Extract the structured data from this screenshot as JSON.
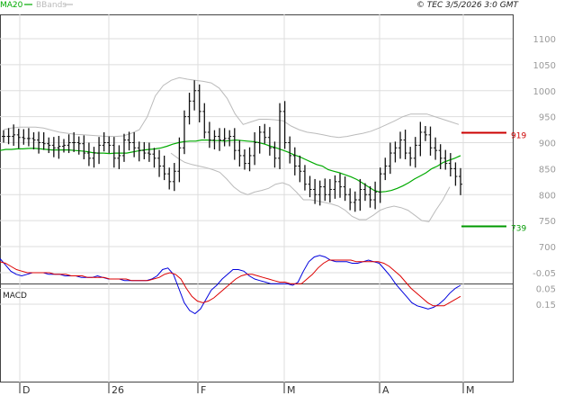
{
  "header": {
    "ma_label": "MA20",
    "bb_label": "BBands",
    "copyright": "© TEC 3/5/2026 3:0 GMT"
  },
  "colors": {
    "ma": "#00aa00",
    "bb": "#bbbbbb",
    "bars": "#111111",
    "resistance": "#cc0000",
    "support": "#009900",
    "macd": "#0000dd",
    "signal": "#dd0000",
    "grid": "#dddddd"
  },
  "chart_data": [
    {
      "type": "bar",
      "title": "",
      "yticks": [
        "700",
        "750",
        "800",
        "850",
        "900",
        "950",
        "1000",
        "1050",
        "1100"
      ],
      "ylim": [
        650,
        1130
      ],
      "xticks": [
        "D",
        "26",
        "F",
        "M",
        "A",
        "M"
      ],
      "xtick_index": [
        3,
        21,
        38,
        55,
        72,
        89
      ],
      "levels": [
        {
          "name": "resistance",
          "value": 919,
          "label": "919"
        },
        {
          "name": "support",
          "value": 739,
          "label": "739"
        }
      ],
      "close": [
        912,
        912,
        915,
        910,
        908,
        908,
        905,
        900,
        898,
        895,
        890,
        893,
        895,
        900,
        900,
        898,
        880,
        870,
        880,
        895,
        900,
        895,
        870,
        875,
        905,
        900,
        890,
        885,
        880,
        878,
        870,
        855,
        840,
        825,
        845,
        890,
        950,
        980,
        1000,
        960,
        920,
        905,
        912,
        905,
        908,
        912,
        885,
        875,
        860,
        875,
        900,
        920,
        910,
        890,
        870,
        960,
        900,
        875,
        855,
        845,
        820,
        810,
        800,
        815,
        800,
        810,
        825,
        815,
        800,
        785,
        790,
        810,
        800,
        790,
        805,
        840,
        855,
        880,
        890,
        905,
        880,
        870,
        895,
        920,
        915,
        890,
        885,
        870,
        860,
        850,
        835,
        820
      ],
      "ma20": [
        885,
        887,
        887,
        888,
        888,
        889,
        889,
        888,
        887,
        886,
        886,
        886,
        886,
        885,
        884,
        883,
        881,
        880,
        880,
        879,
        880,
        880,
        880,
        882,
        884,
        886,
        887,
        888,
        890,
        893,
        897,
        900,
        902,
        903,
        903,
        905,
        905,
        904,
        904,
        903,
        904,
        905,
        904,
        903,
        902,
        900,
        897,
        893,
        890,
        886,
        882,
        877,
        873,
        868,
        863,
        858,
        855,
        848,
        845,
        842,
        838,
        834,
        829,
        822,
        815,
        808,
        805,
        806,
        808,
        812,
        817,
        823,
        830,
        836,
        842,
        850,
        855,
        862,
        866,
        870,
        875
      ],
      "ma20_start_index": 0,
      "bb_upper": [
        925,
        928,
        930,
        930,
        930,
        928,
        924,
        920,
        918,
        916,
        915,
        914,
        913,
        912,
        912,
        913,
        918,
        925,
        950,
        990,
        1010,
        1020,
        1025,
        1022,
        1020,
        1018,
        1015,
        1005,
        985,
        955,
        935,
        940,
        945,
        945,
        944,
        942,
        932,
        925,
        920,
        918,
        915,
        912,
        910,
        912,
        915,
        918,
        922,
        928,
        935,
        942,
        950,
        955,
        955,
        955,
        950,
        945,
        940,
        935
      ],
      "bb_upper_start_index": 0,
      "bb_lower": [
        880,
        870,
        862,
        858,
        855,
        852,
        848,
        843,
        830,
        815,
        805,
        800,
        805,
        808,
        812,
        820,
        823,
        818,
        805,
        790,
        790,
        788,
        785,
        782,
        778,
        770,
        758,
        752,
        752,
        760,
        770,
        775,
        778,
        775,
        770,
        760,
        750,
        748,
        770,
        790,
        815
      ],
      "bb_lower_start_index": 38
    },
    {
      "type": "line",
      "title": "MACD",
      "yticks": [
        "0.15",
        "0.05",
        "-0.05"
      ],
      "ylim": [
        -0.2,
        0.25
      ],
      "series": [
        {
          "name": "",
          "color": "macd",
          "values": [
            -0.14,
            -0.1,
            -0.06,
            -0.04,
            -0.03,
            -0.04,
            -0.05,
            -0.05,
            -0.05,
            -0.04,
            -0.04,
            -0.04,
            -0.03,
            -0.03,
            -0.03,
            -0.02,
            -0.02,
            -0.02,
            -0.03,
            -0.02,
            -0.01,
            -0.01,
            -0.01,
            0.0,
            0.0,
            0.0,
            0.0,
            0.0,
            -0.01,
            -0.03,
            -0.07,
            -0.08,
            -0.04,
            0.05,
            0.14,
            0.19,
            0.21,
            0.18,
            0.12,
            0.06,
            0.03,
            -0.01,
            -0.04,
            -0.07,
            -0.07,
            -0.06,
            -0.03,
            -0.01,
            0.0,
            0.01,
            0.02,
            0.02,
            0.02,
            0.02,
            0.03,
            0.01,
            -0.06,
            -0.12,
            -0.15,
            -0.16,
            -0.15,
            -0.13,
            -0.12,
            -0.12,
            -0.12,
            -0.11,
            -0.11,
            -0.12,
            -0.13,
            -0.12,
            -0.11,
            -0.07,
            -0.03,
            0.02,
            0.06,
            0.1,
            0.14,
            0.16,
            0.17,
            0.18,
            0.17,
            0.15,
            0.12,
            0.08,
            0.05,
            0.03
          ]
        },
        {
          "name": "",
          "color": "signal",
          "values": [
            -0.12,
            -0.11,
            -0.09,
            -0.07,
            -0.06,
            -0.05,
            -0.05,
            -0.05,
            -0.05,
            -0.05,
            -0.04,
            -0.04,
            -0.04,
            -0.03,
            -0.03,
            -0.03,
            -0.02,
            -0.02,
            -0.02,
            -0.02,
            -0.01,
            -0.01,
            -0.01,
            -0.01,
            0.0,
            0.0,
            0.0,
            0.0,
            -0.01,
            -0.02,
            -0.04,
            -0.05,
            -0.04,
            -0.01,
            0.05,
            0.1,
            0.13,
            0.14,
            0.13,
            0.11,
            0.08,
            0.05,
            0.02,
            -0.01,
            -0.03,
            -0.04,
            -0.04,
            -0.03,
            -0.02,
            -0.01,
            0.0,
            0.01,
            0.01,
            0.02,
            0.02,
            0.02,
            -0.01,
            -0.04,
            -0.08,
            -0.11,
            -0.13,
            -0.13,
            -0.13,
            -0.13,
            -0.13,
            -0.12,
            -0.12,
            -0.12,
            -0.12,
            -0.12,
            -0.11,
            -0.09,
            -0.06,
            -0.03,
            0.01,
            0.05,
            0.08,
            0.11,
            0.14,
            0.16,
            0.16,
            0.16,
            0.14,
            0.12,
            0.1
          ]
        }
      ]
    }
  ]
}
